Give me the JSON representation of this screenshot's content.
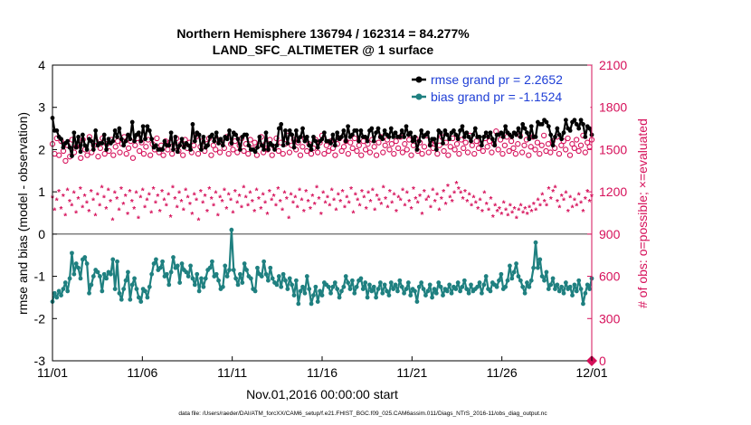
{
  "chart_data": {
    "type": "line",
    "title": "Northern Hemisphere 136794 / 162314 = 84.277%",
    "subtitle": "LAND_SFC_ALTIMETER @ 1 surface",
    "xlabel": "Nov.01,2016 00:00:00 start",
    "ylabel": "rmse and bias (model - observation)",
    "y2label": "# of obs: o=possible; ×=evaluated",
    "footnote": "data file: /Users/raeder/DAI/ATM_forcXX/CAM6_setup/f.e21.FHIST_BGC.f09_025.CAM6assim.011/Diags_NTrS_2016-11/obs_diag_output.nc",
    "xticks": [
      "11/01",
      "11/06",
      "11/11",
      "11/16",
      "11/21",
      "11/26",
      "12/01"
    ],
    "xlim": [
      0,
      30
    ],
    "ylim": [
      -3,
      4
    ],
    "yticks": [
      "-3",
      "-2",
      "-1",
      "0",
      "1",
      "2",
      "3",
      "4"
    ],
    "y2lim": [
      0,
      2100
    ],
    "y2ticks": [
      "0",
      "300",
      "600",
      "900",
      "1200",
      "1500",
      "1800",
      "2100"
    ],
    "legend": [
      {
        "label": "rmse grand pr = 2.2652",
        "color": "#000000"
      },
      {
        "label": "bias grand pr = -1.1524",
        "color": "#1f8080"
      }
    ],
    "colors": {
      "rmse": "#000000",
      "bias": "#1f8080",
      "obs": "#d6105a",
      "legend_text": "#1f3fd6"
    },
    "series": [
      {
        "name": "rmse",
        "color": "#000000",
        "marker": "dot",
        "values": [
          2.75,
          2.45,
          2.45,
          2.3,
          2.25,
          2.05,
          2.15,
          2.2,
          2.05,
          1.85,
          2.4,
          2.05,
          2.3,
          1.95,
          2.35,
          2.1,
          2.0,
          2.25,
          2.2,
          2.0,
          2.45,
          2.1,
          2.15,
          2.15,
          2.35,
          2.0,
          2.25,
          2.15,
          2.2,
          2.45,
          2.3,
          2.5,
          2.25,
          2.1,
          2.2,
          2.35,
          2.25,
          2.65,
          2.2,
          2.35,
          2.4,
          2.2,
          2.55,
          2.25,
          2.55,
          2.45,
          2.25,
          2.05,
          2.1,
          2.0,
          2.0,
          2.0,
          2.2,
          2.1,
          2.1,
          2.4,
          2.0,
          2.3,
          1.95,
          2.1,
          2.25,
          2.05,
          2.15,
          2.1,
          2.0,
          2.6,
          2.2,
          2.4,
          2.35,
          2.0,
          2.3,
          2.05,
          2.1,
          2.3,
          2.35,
          2.2,
          2.4,
          2.15,
          2.25,
          2.1,
          2.3,
          2.25,
          2.45,
          2.15,
          2.4,
          2.35,
          2.25,
          2.0,
          2.3,
          2.35,
          2.35,
          2.1,
          2.0,
          2.0,
          1.95,
          2.05,
          2.3,
          2.1,
          2.0,
          2.4,
          2.0,
          2.15,
          2.1,
          2.0,
          2.1,
          2.5,
          2.6,
          2.1,
          2.45,
          2.15,
          2.45,
          2.35,
          2.05,
          2.45,
          2.2,
          2.3,
          2.5,
          2.2,
          2.3,
          2.1,
          2.0,
          2.3,
          2.2,
          2.05,
          2.2,
          2.25,
          2.4,
          2.2,
          2.2,
          2.15,
          2.35,
          2.1,
          2.4,
          2.25,
          2.3,
          2.45,
          2.2,
          2.55,
          2.3,
          2.35,
          2.45,
          2.45,
          2.2,
          2.45,
          2.3,
          2.3,
          2.2,
          2.45,
          2.5,
          2.2,
          2.4,
          2.5,
          2.3,
          2.25,
          2.45,
          2.35,
          2.3,
          2.5,
          2.3,
          2.4,
          2.3,
          2.3,
          2.45,
          2.3,
          2.55,
          2.35,
          2.4,
          2.2,
          2.3,
          2.0,
          2.2,
          2.45,
          2.3,
          2.35,
          2.4,
          2.1,
          2.25,
          2.25,
          2.0,
          2.45,
          2.4,
          2.15,
          2.45,
          2.35,
          2.25,
          2.4,
          2.45,
          2.35,
          2.25,
          2.45,
          2.55,
          2.3,
          2.4,
          2.3,
          2.2,
          2.35,
          2.5,
          2.3,
          2.3,
          2.1,
          2.3,
          2.4,
          2.3,
          2.4,
          2.25,
          2.1,
          2.35,
          2.35,
          2.4,
          2.3,
          2.55,
          2.4,
          2.35,
          2.3,
          2.4,
          2.35,
          2.5,
          2.3,
          2.6,
          2.5,
          2.4,
          2.25,
          2.55,
          2.3,
          2.3,
          2.65,
          2.6,
          2.6,
          2.7,
          2.65,
          2.55,
          2.35,
          2.1,
          2.3,
          2.5,
          2.35,
          2.25,
          2.4,
          2.7,
          2.5,
          2.45,
          2.65,
          2.7,
          2.6,
          2.5,
          2.7,
          2.6,
          2.3,
          2.55,
          2.5,
          2.35
        ]
      },
      {
        "name": "bias",
        "color": "#1f8080",
        "marker": "dot",
        "values": [
          -1.6,
          -1.4,
          -1.5,
          -1.35,
          -1.45,
          -1.3,
          -1.15,
          -1.35,
          -1.05,
          -0.45,
          -0.95,
          -0.7,
          -0.8,
          -1.05,
          -0.6,
          -0.55,
          -0.7,
          -1.4,
          -1.2,
          -1.0,
          -0.85,
          -0.9,
          -1.0,
          -1.35,
          -0.95,
          -1.05,
          -0.9,
          -0.95,
          -0.6,
          -1.3,
          -0.65,
          -1.4,
          -1.55,
          -1.3,
          -1.1,
          -0.9,
          -1.55,
          -1.2,
          -1.05,
          -1.3,
          -1.5,
          -1.6,
          -1.3,
          -1.35,
          -1.5,
          -1.25,
          -0.95,
          -0.7,
          -0.6,
          -0.85,
          -0.8,
          -0.65,
          -1.0,
          -0.95,
          -1.2,
          -0.9,
          -0.55,
          -0.8,
          -0.75,
          -1.15,
          -0.7,
          -0.85,
          -0.9,
          -1.0,
          -0.75,
          -1.05,
          -1.2,
          -0.95,
          -1.35,
          -1.05,
          -1.25,
          -1.05,
          -0.85,
          -0.8,
          -0.65,
          -1.0,
          -0.95,
          -1.1,
          -1.3,
          -1.25,
          -0.75,
          -1.0,
          -0.85,
          0.1,
          -0.85,
          -1.05,
          -1.2,
          -0.95,
          -1.15,
          -0.7,
          -0.85,
          -1.0,
          -1.05,
          -1.3,
          -1.35,
          -0.8,
          -0.95,
          -1.0,
          -0.65,
          -0.95,
          -1.1,
          -0.8,
          -1.05,
          -1.15,
          -1.2,
          -1.0,
          -1.25,
          -0.95,
          -1.1,
          -1.3,
          -1.05,
          -1.2,
          -1.45,
          -1.1,
          -1.65,
          -1.35,
          -1.25,
          -1.4,
          -1.0,
          -1.3,
          -1.65,
          -1.45,
          -1.25,
          -1.6,
          -1.35,
          -1.45,
          -1.15,
          -1.2,
          -1.25,
          -1.4,
          -1.25,
          -1.15,
          -1.3,
          -1.5,
          -1.35,
          -1.25,
          -1.0,
          -1.15,
          -1.3,
          -1.1,
          -1.4,
          -1.25,
          -1.1,
          -1.05,
          -1.3,
          -1.15,
          -1.5,
          -1.2,
          -1.35,
          -1.25,
          -1.5,
          -1.3,
          -1.15,
          -1.4,
          -1.2,
          -1.35,
          -1.45,
          -1.15,
          -1.3,
          -1.2,
          -1.35,
          -1.1,
          -1.25,
          -1.4,
          -1.3,
          -1.15,
          -1.45,
          -1.3,
          -1.35,
          -1.6,
          -1.25,
          -1.15,
          -1.3,
          -1.45,
          -1.35,
          -1.2,
          -1.5,
          -1.3,
          -1.4,
          -1.15,
          -1.25,
          -1.45,
          -1.3,
          -1.35,
          -1.2,
          -1.4,
          -1.25,
          -1.3,
          -1.15,
          -1.35,
          -1.25,
          -1.1,
          -1.3,
          -1.4,
          -1.2,
          -1.35,
          -1.3,
          -1.25,
          -1.15,
          -1.4,
          -1.2,
          -1.0,
          -1.3,
          -1.35,
          -1.15,
          -1.2,
          -1.25,
          -1.1,
          -0.95,
          -1.3,
          -1.25,
          -1.1,
          -0.75,
          -1.05,
          -0.9,
          -0.7,
          -1.0,
          -1.1,
          -1.25,
          -1.4,
          -1.15,
          -1.25,
          -1.1,
          -0.8,
          -0.2,
          -0.8,
          -0.6,
          -1.0,
          -1.1,
          -0.9,
          -1.3,
          -1.2,
          -1.05,
          -1.3,
          -1.2,
          -1.35,
          -1.25,
          -1.4,
          -1.15,
          -1.3,
          -1.25,
          -1.45,
          -1.2,
          -1.35,
          -1.1,
          -1.3,
          -1.65,
          -1.4,
          -1.2,
          -1.3,
          -1.05
        ]
      },
      {
        "name": "obs possible",
        "axis": "right",
        "color": "#d6105a",
        "marker": "circle",
        "values": [
          1540,
          1470,
          1580,
          1460,
          1560,
          1490,
          1420,
          1530,
          1450,
          1570,
          1480,
          1520,
          1540,
          1440,
          1570,
          1500,
          1460,
          1590,
          1480,
          1530,
          1560,
          1450,
          1510,
          1580,
          1470,
          1540,
          1490,
          1570,
          1460,
          1520,
          1560,
          1480,
          1540,
          1590,
          1470,
          1510,
          1560,
          1440,
          1530,
          1580,
          1490,
          1550,
          1470,
          1520,
          1570,
          1460,
          1540,
          1500,
          1580,
          1480,
          1530,
          1460,
          1560,
          1500,
          1550,
          1470,
          1520,
          1580,
          1490,
          1540,
          1460,
          1570,
          1510,
          1550,
          1480,
          1530,
          1590,
          1470,
          1520,
          1560,
          1490,
          1540,
          1580,
          1460,
          1530,
          1500,
          1570,
          1480,
          1550,
          1510,
          1590,
          1470,
          1540,
          1500,
          1560,
          1480,
          1530,
          1580,
          1490,
          1540,
          1470,
          1570,
          1510,
          1550,
          1460,
          1530,
          1590,
          1480,
          1540,
          1500,
          1570,
          1460,
          1520,
          1580,
          1490,
          1550,
          1470,
          1540,
          1600,
          1480,
          1530,
          1570,
          1500,
          1550,
          1460,
          1520,
          1580,
          1490,
          1540,
          1470,
          1510,
          1570,
          1480,
          1550,
          1600,
          1470,
          1530,
          1490,
          1560,
          1510,
          1460,
          1540,
          1580,
          1490,
          1520,
          1560,
          1470,
          1550,
          1510,
          1580,
          1490,
          1530,
          1460,
          1560,
          1500,
          1540,
          1480,
          1570,
          1520,
          1460,
          1550,
          1590,
          1480,
          1530,
          1570,
          1500,
          1540,
          1470,
          1560,
          1510,
          1590,
          1480,
          1540,
          1500,
          1570,
          1460,
          1530,
          1580,
          1490,
          1550,
          1470,
          1520,
          1600,
          1480,
          1540,
          1510,
          1560,
          1470,
          1530,
          1590,
          1490,
          1550,
          1460,
          1520,
          1580,
          1500,
          1540,
          1470,
          1570,
          1510,
          1550,
          1480,
          1600,
          1530,
          1470,
          1560,
          1510,
          1540,
          1490,
          1580,
          1520,
          1560,
          1480,
          1540,
          1630,
          1500,
          1570,
          1470,
          1530,
          1590,
          1490,
          1560,
          1510,
          1470,
          1540,
          1600,
          1480,
          1530,
          1570,
          1460,
          1520,
          1590,
          1500,
          1550,
          1470,
          1530,
          1600,
          1490,
          1540,
          1480,
          1560,
          1510,
          1590,
          1470,
          1530,
          1560,
          1500,
          1580,
          1460,
          1540,
          1510,
          1570,
          1490,
          1530,
          1600,
          1480,
          1550,
          1520,
          1570
        ]
      },
      {
        "name": "obs evaluated",
        "axis": "right",
        "color": "#d6105a",
        "marker": "star",
        "values": [
          1160,
          1070,
          1140,
          1200,
          1080,
          1170,
          1030,
          1210,
          1130,
          1100,
          1190,
          1050,
          1150,
          1220,
          1090,
          1170,
          1120,
          1060,
          1200,
          1140,
          1030,
          1180,
          1100,
          1230,
          1160,
          1080,
          1210,
          1130,
          1000,
          1190,
          1150,
          1070,
          1220,
          1110,
          1170,
          1040,
          1200,
          1130,
          1080,
          1190,
          1010,
          1160,
          1210,
          1090,
          1140,
          1180,
          1050,
          1220,
          1120,
          1170,
          1060,
          1200,
          1140,
          1100,
          1180,
          1020,
          1230,
          1150,
          1090,
          1190,
          1130,
          1070,
          1210,
          1160,
          1110,
          1040,
          1180,
          1140,
          1000,
          1200,
          1120,
          1170,
          1060,
          1220,
          1150,
          1100,
          1190,
          1030,
          1160,
          1130,
          1210,
          1080,
          1180,
          1140,
          1050,
          1200,
          1120,
          1170,
          1090,
          1230,
          1160,
          1100,
          1190,
          1130,
          1060,
          1210,
          1150,
          1080,
          1180,
          1120,
          1040,
          1200,
          1140,
          1170,
          1100,
          1220,
          1130,
          1070,
          1190,
          1150,
          1010,
          1180,
          1120,
          1160,
          1090,
          1210,
          1140,
          1060,
          1200,
          1130,
          1080,
          1170,
          1110,
          1230,
          1150,
          1040,
          1190,
          1120,
          1160,
          1100,
          1210,
          1140,
          1070,
          1180,
          1130,
          1200,
          1090,
          1160,
          1120,
          1220,
          1050,
          1180,
          1140,
          1100,
          1200,
          1160,
          1080,
          1190,
          1130,
          1210,
          1070,
          1170,
          1140,
          1110,
          1230,
          1150,
          1090,
          1200,
          1120,
          1180,
          1060,
          1160,
          1140,
          1210,
          1100,
          1190,
          1130,
          1080,
          1220,
          1150,
          1120,
          1170,
          1040,
          1200,
          1140,
          1160,
          1090,
          1210,
          1130,
          1180,
          1070,
          1150,
          1200,
          1110,
          1240,
          1160,
          1130,
          1190,
          1260,
          1220,
          1190,
          1150,
          1200,
          1130,
          1180,
          1100,
          1160,
          1120,
          1080,
          1140,
          1060,
          1190,
          1110,
          1070,
          1150,
          1020,
          1100,
          1060,
          1080,
          1040,
          1120,
          1070,
          1030,
          1100,
          1050,
          1080,
          1010,
          1070,
          1100,
          1050,
          1080,
          1040,
          1090,
          1060,
          1110,
          1070,
          1140,
          1100,
          1180,
          1130,
          1100,
          1220,
          1150,
          1200,
          1230,
          1130,
          1090,
          1170,
          1140,
          1190,
          1060,
          1160,
          1090,
          1140,
          1100,
          1180,
          1120,
          1060,
          1150,
          1200,
          1130,
          1170
        ]
      }
    ]
  }
}
